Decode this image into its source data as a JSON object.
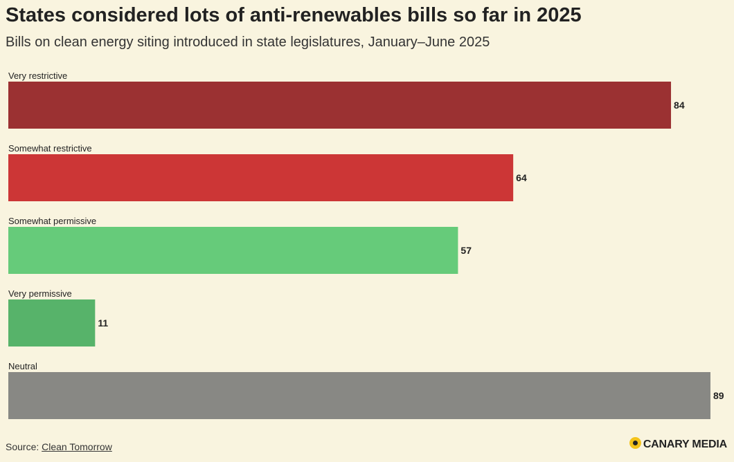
{
  "header": {
    "title": "States considered lots of anti-renewables bills so far in 2025",
    "subtitle": "Bills on clean energy siting introduced in state legislatures, January–June 2025"
  },
  "chart_data": {
    "type": "bar",
    "orientation": "horizontal",
    "title": "States considered lots of anti-renewables bills so far in 2025",
    "subtitle": "Bills on clean energy siting introduced in state legislatures, January–June 2025",
    "categories": [
      "Very restrictive",
      "Somewhat restrictive",
      "Somewhat permissive",
      "Very permissive",
      "Neutral"
    ],
    "values": [
      84,
      64,
      57,
      11,
      89
    ],
    "colors": [
      "#9b3132",
      "#cc3636",
      "#66cb7a",
      "#57b36a",
      "#888884"
    ],
    "xlim": [
      0,
      89
    ],
    "xlabel": "",
    "ylabel": "",
    "grid": false
  },
  "footer": {
    "source_prefix": "Source: ",
    "source_link": "Clean Tomorrow",
    "logo_text": "CANARY MEDIA"
  }
}
